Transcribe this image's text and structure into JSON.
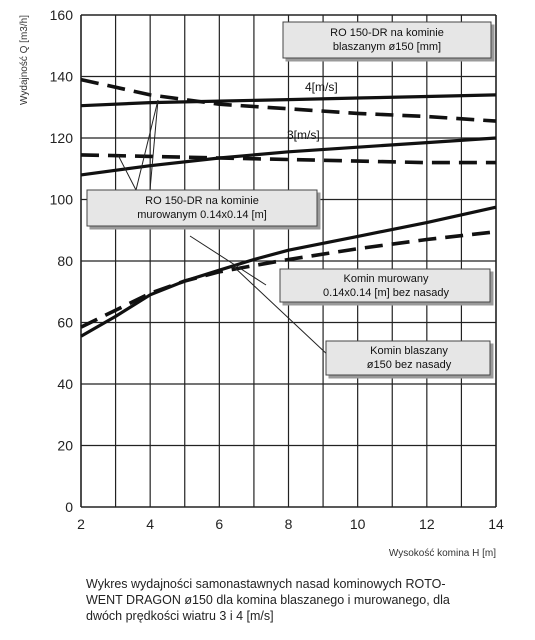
{
  "chart_data": {
    "type": "line",
    "title": "",
    "xlabel": "Wysokość komina H [m]",
    "ylabel": "Wydajność Q [m3/h]",
    "xlim": [
      2,
      14
    ],
    "ylim": [
      0,
      160
    ],
    "x_ticks": [
      "2",
      "4",
      "6",
      "8",
      "10",
      "12",
      "14"
    ],
    "y_ticks": [
      "0",
      "20",
      "40",
      "60",
      "80",
      "100",
      "120",
      "140",
      "160"
    ],
    "grid": true,
    "wind_labels": [
      "4[m/s]",
      "3[m/s]"
    ],
    "series": [
      {
        "style": "solid",
        "x": [
          2,
          4,
          6,
          8,
          10,
          12,
          14
        ],
        "y": [
          130.5,
          131.5,
          132,
          132.5,
          133,
          133.5,
          134
        ]
      },
      {
        "style": "dashed",
        "x": [
          2,
          4,
          6,
          8,
          10,
          12,
          14
        ],
        "y": [
          139,
          134,
          131,
          129.5,
          128,
          127,
          125.5
        ]
      },
      {
        "style": "solid",
        "x": [
          2,
          4,
          6,
          8,
          10,
          12,
          14
        ],
        "y": [
          108,
          111,
          113.5,
          115.5,
          117,
          118.5,
          120
        ]
      },
      {
        "style": "dashed",
        "x": [
          2,
          4,
          6,
          8,
          10,
          12,
          14
        ],
        "y": [
          114.5,
          114,
          113.5,
          113,
          112.5,
          112,
          112
        ]
      },
      {
        "style": "solid",
        "x": [
          2,
          3,
          4,
          5,
          6,
          7,
          8,
          10,
          12,
          14
        ],
        "y": [
          55.5,
          62,
          69,
          73.5,
          77,
          80.5,
          83.5,
          88,
          92.5,
          97.5
        ]
      },
      {
        "style": "dashed",
        "x": [
          2,
          3,
          4,
          5,
          6,
          7,
          8,
          10,
          12,
          14
        ],
        "y": [
          58.5,
          64,
          69.5,
          73.5,
          76.5,
          78.5,
          80.5,
          84,
          87,
          89.5
        ]
      }
    ],
    "annotations": [
      {
        "lines": [
          "RO 150-DR na kominie",
          "blaszanym ø150 [mm]"
        ]
      },
      {
        "lines": [
          "RO 150-DR na kominie",
          "murowanym 0.14x0.14 [m]"
        ]
      },
      {
        "lines": [
          "Komin murowany",
          "0.14x0.14 [m] bez nasady"
        ]
      },
      {
        "lines": [
          "Komin blaszany",
          "ø150 bez nasady"
        ]
      }
    ]
  },
  "caption": [
    "Wykres wydajności samonastawnych nasad kominowych ROTO-",
    "WENT DRAGON ø150 dla komina blaszanego i murowanego, dla",
    "dwóch prędkości wiatru 3 i 4 [m/s]"
  ]
}
